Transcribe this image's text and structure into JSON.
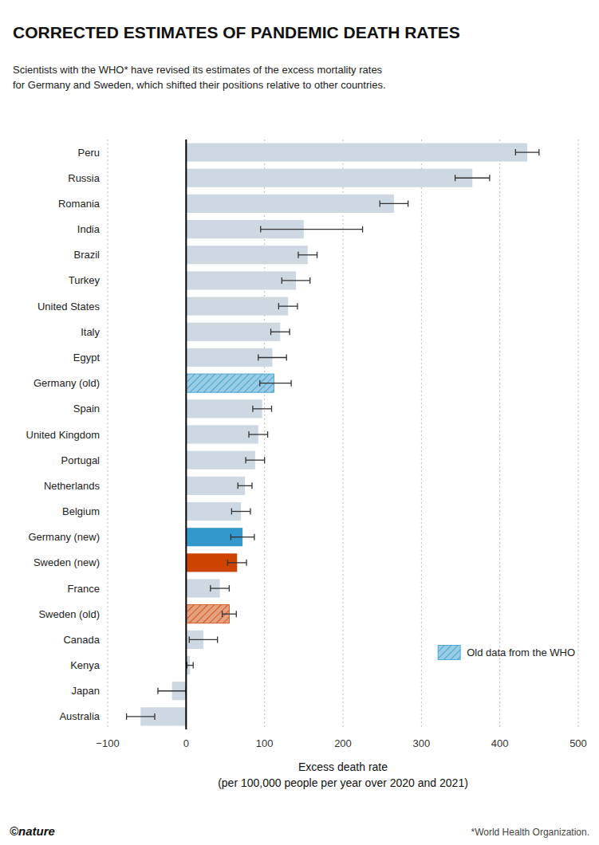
{
  "chart_data": {
    "type": "bar",
    "orientation": "horizontal",
    "title": "CORRECTED ESTIMATES OF PANDEMIC DEATH RATES",
    "subtitle": "Scientists with the WHO* have revised its estimates of the excess mortality rates\nfor Germany and Sweden, which shifted their positions relative to other countries.",
    "xlabel": "Excess death rate\n(per 100,000 people per year over 2020 and 2021)",
    "annotations": [
      "©nature",
      "*World Health Organization."
    ],
    "categories": [
      "Peru",
      "Russia",
      "Romania",
      "India",
      "Brazil",
      "Turkey",
      "United States",
      "Italy",
      "Egypt",
      "Germany (old)",
      "Spain",
      "United Kingdom",
      "Portugal",
      "Netherlands",
      "Belgium",
      "Germany (new)",
      "Sweden (new)",
      "France",
      "Sweden (old)",
      "Canada",
      "Kenya",
      "Japan",
      "Australia"
    ],
    "series": [
      {
        "values": [
          435,
          365,
          265,
          150,
          155,
          140,
          130,
          120,
          110,
          null,
          97,
          92,
          88,
          75,
          70,
          72,
          65,
          43,
          null,
          22,
          5,
          -18,
          -58
        ],
        "err_low": [
          15,
          22,
          18,
          55,
          12,
          18,
          12,
          12,
          18,
          null,
          12,
          12,
          12,
          9,
          12,
          15,
          12,
          12,
          null,
          18,
          4,
          18,
          18
        ],
        "err_high": [
          15,
          22,
          18,
          75,
          12,
          18,
          12,
          12,
          18,
          null,
          12,
          12,
          12,
          9,
          12,
          15,
          12,
          12,
          null,
          18,
          4,
          18,
          18
        ],
        "colors": [
          "#cdd8e3",
          "#cdd8e3",
          "#cdd8e3",
          "#cdd8e3",
          "#cdd8e3",
          "#cdd8e3",
          "#cdd8e3",
          "#cdd8e3",
          "#cdd8e3",
          null,
          "#cdd8e3",
          "#cdd8e3",
          "#cdd8e3",
          "#cdd8e3",
          "#cdd8e3",
          "#3399cc",
          "#cc4400",
          "#cdd8e3",
          null,
          "#cdd8e3",
          "#cdd8e3",
          "#cdd8e3",
          "#cdd8e3"
        ]
      },
      {
        "name": "Old data from the WHO",
        "color": "#3399cc",
        "marker": "hatch",
        "values": [
          null,
          null,
          null,
          null,
          null,
          null,
          null,
          null,
          null,
          112,
          null,
          null,
          null,
          null,
          null,
          null,
          null,
          null,
          55,
          null,
          null,
          null,
          null
        ],
        "err_low": [
          null,
          null,
          null,
          null,
          null,
          null,
          null,
          null,
          null,
          18,
          null,
          null,
          null,
          null,
          null,
          null,
          null,
          null,
          9,
          null,
          null,
          null,
          null
        ],
        "err_high": [
          null,
          null,
          null,
          null,
          null,
          null,
          null,
          null,
          null,
          22,
          null,
          null,
          null,
          null,
          null,
          null,
          null,
          null,
          9,
          null,
          null,
          null,
          null
        ],
        "colors": [
          null,
          null,
          null,
          null,
          null,
          null,
          null,
          null,
          null,
          "#3399cc",
          null,
          null,
          null,
          null,
          null,
          null,
          null,
          null,
          "#cc4400",
          null,
          null,
          null,
          null
        ]
      }
    ],
    "xlim": [
      -100,
      500
    ],
    "xticks": [
      {
        "value": -100,
        "label": "−100"
      },
      0,
      100,
      200,
      300,
      400,
      500
    ],
    "grid": true,
    "legend": "lower right"
  }
}
